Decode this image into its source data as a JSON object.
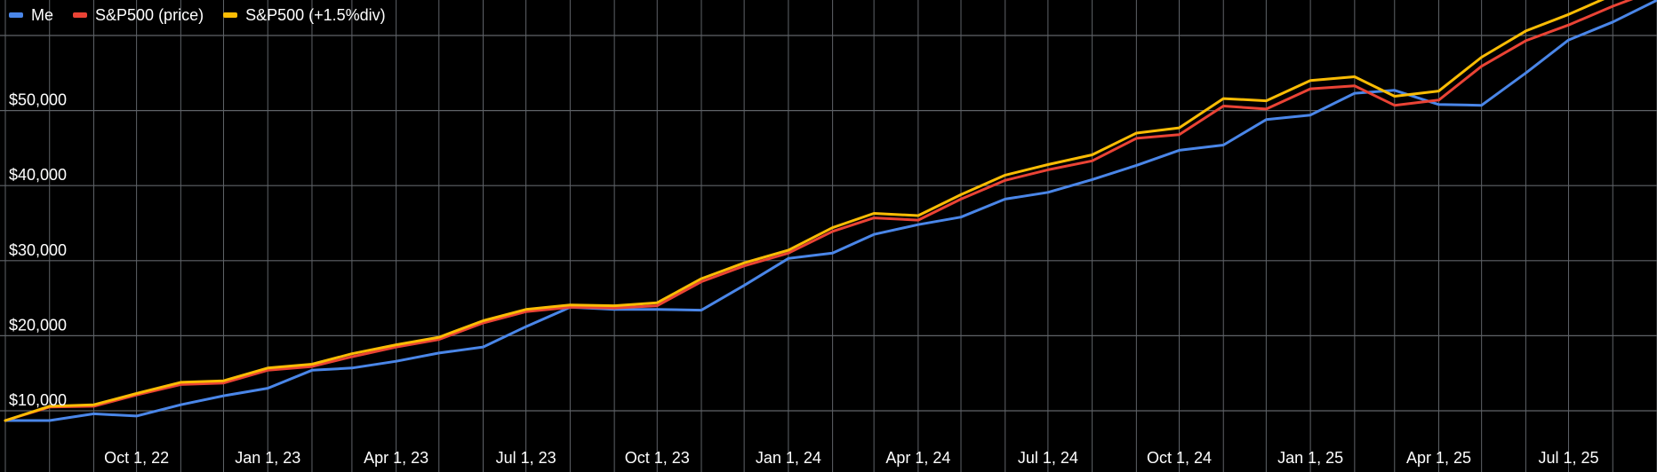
{
  "chart_data": {
    "type": "line",
    "title": "",
    "xlabel": "",
    "ylabel": "",
    "x": [
      "2022-07-01",
      "2022-08-01",
      "2022-09-01",
      "2022-10-01",
      "2022-11-01",
      "2022-12-01",
      "2023-01-01",
      "2023-02-01",
      "2023-03-01",
      "2023-04-01",
      "2023-05-01",
      "2023-06-01",
      "2023-07-01",
      "2023-08-01",
      "2023-09-01",
      "2023-10-01",
      "2023-11-01",
      "2023-12-01",
      "2024-01-01",
      "2024-02-01",
      "2024-03-01",
      "2024-04-01",
      "2024-05-01",
      "2024-06-01",
      "2024-07-01",
      "2024-08-01",
      "2024-09-01",
      "2024-10-01",
      "2024-11-01",
      "2024-12-01",
      "2025-01-01",
      "2025-02-01",
      "2025-03-01",
      "2025-04-01",
      "2025-05-01",
      "2025-06-01",
      "2025-07-01",
      "2025-08-01",
      "2025-09-01"
    ],
    "xlim": [
      "2022-07-01",
      "2025-09-01"
    ],
    "ylim": [
      8000,
      63000
    ],
    "grid": true,
    "legend_position": "top-left",
    "x_ticks": [
      {
        "date": "2022-10-01",
        "label": "Oct 1, 22"
      },
      {
        "date": "2023-01-01",
        "label": "Jan 1, 23"
      },
      {
        "date": "2023-04-01",
        "label": "Apr 1, 23"
      },
      {
        "date": "2023-07-01",
        "label": "Jul 1, 23"
      },
      {
        "date": "2023-10-01",
        "label": "Oct 1, 23"
      },
      {
        "date": "2024-01-01",
        "label": "Jan 1, 24"
      },
      {
        "date": "2024-04-01",
        "label": "Apr 1, 24"
      },
      {
        "date": "2024-07-01",
        "label": "Jul 1, 24"
      },
      {
        "date": "2024-10-01",
        "label": "Oct 1, 24"
      },
      {
        "date": "2025-01-01",
        "label": "Jan 1, 25"
      },
      {
        "date": "2025-04-01",
        "label": "Apr 1, 25"
      },
      {
        "date": "2025-07-01",
        "label": "Jul 1, 25"
      }
    ],
    "y_ticks": [
      {
        "value": 10000,
        "label": "$10,000"
      },
      {
        "value": 20000,
        "label": "$20,000"
      },
      {
        "value": 30000,
        "label": "$30,000"
      },
      {
        "value": 40000,
        "label": "$40,000"
      },
      {
        "value": 50000,
        "label": "$50,000"
      },
      {
        "value": 60000,
        "label": ""
      }
    ],
    "series": [
      {
        "name": "Me",
        "color": "#4a86e8",
        "values": [
          8700,
          8700,
          9600,
          9300,
          10800,
          12000,
          13000,
          15400,
          15700,
          16600,
          17700,
          18500,
          21200,
          23800,
          23500,
          23500,
          23400,
          26700,
          30300,
          31000,
          33500,
          34800,
          35800,
          38200,
          39100,
          40800,
          42700,
          44700,
          45400,
          48800,
          49400,
          52300,
          52700,
          50800,
          50700,
          55000,
          59400,
          61800,
          64700
        ]
      },
      {
        "name": "S&P500 (price)",
        "color": "#ea4335",
        "values": [
          8700,
          10500,
          10600,
          12100,
          13500,
          13700,
          15400,
          15900,
          17200,
          18500,
          19500,
          21700,
          23200,
          23800,
          23700,
          24000,
          27200,
          29300,
          31000,
          33900,
          35700,
          35400,
          38200,
          40700,
          42100,
          43300,
          46300,
          46800,
          50600,
          50200,
          52900,
          53300,
          50700,
          51400,
          55900,
          59300,
          61400,
          63900,
          66100
        ]
      },
      {
        "name": "S&P500 (+1.5%div)",
        "color": "#fbbc04",
        "values": [
          8700,
          10600,
          10800,
          12300,
          13800,
          14000,
          15700,
          16200,
          17600,
          18800,
          19800,
          22000,
          23500,
          24100,
          24000,
          24400,
          27600,
          29700,
          31400,
          34400,
          36300,
          36000,
          38800,
          41400,
          42800,
          44100,
          47000,
          47700,
          51600,
          51300,
          54000,
          54500,
          51900,
          52600,
          57100,
          60600,
          62800,
          65400,
          67700
        ]
      }
    ]
  },
  "colors": {
    "background": "#000000",
    "gridline": "#5f6368",
    "text": "#ffffff"
  }
}
